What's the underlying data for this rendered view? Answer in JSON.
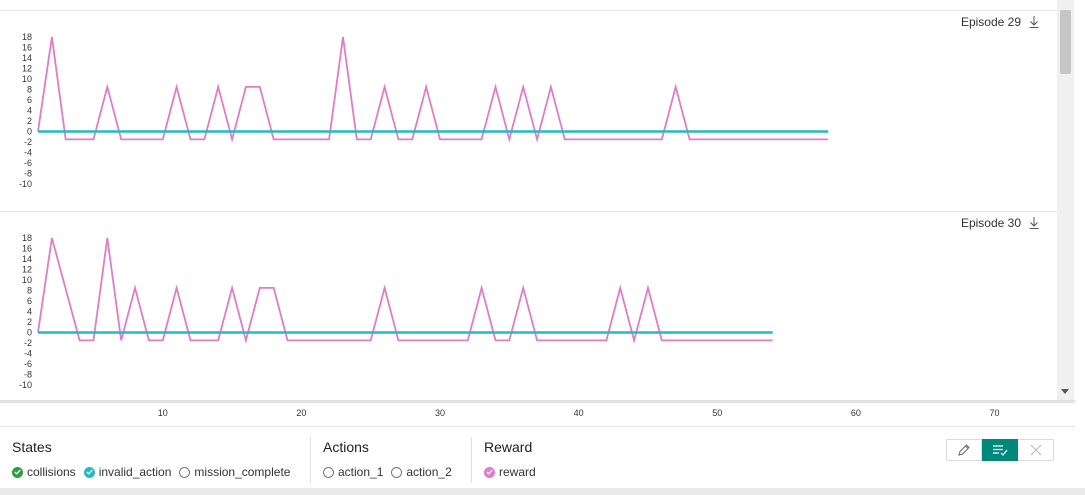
{
  "colors": {
    "reward": "#e07cc8",
    "invalid_action": "#26b8c4",
    "collisions": "#2e9e3e",
    "accent": "#00897b"
  },
  "episodes": [
    {
      "title": "Episode 29"
    },
    {
      "title": "Episode 30"
    }
  ],
  "chart_data": [
    {
      "type": "line",
      "title": "Episode 29",
      "xlim": [
        1,
        74
      ],
      "ylim": [
        -10,
        18
      ],
      "yticks": [
        18,
        16,
        14,
        12,
        10,
        8,
        6,
        4,
        2,
        0,
        -2,
        -4,
        -6,
        -8,
        -10
      ],
      "series": [
        {
          "name": "reward",
          "x": [
            1,
            2,
            3,
            5,
            6,
            7,
            10,
            11,
            12,
            13,
            14,
            15,
            16,
            17,
            18,
            22,
            23,
            24,
            25,
            26,
            27,
            28,
            29,
            30,
            33,
            34,
            35,
            36,
            37,
            38,
            39,
            46,
            47,
            48,
            58
          ],
          "y": [
            0,
            18,
            -1.5,
            -1.5,
            8.5,
            -1.5,
            -1.5,
            8.5,
            -1.5,
            -1.5,
            8.5,
            -1.5,
            8.5,
            8.5,
            -1.5,
            -1.5,
            18,
            -1.5,
            -1.5,
            8.5,
            -1.5,
            -1.5,
            8.5,
            -1.5,
            -1.5,
            8.5,
            -1.5,
            8.5,
            -1.5,
            8.5,
            -1.5,
            -1.5,
            8.5,
            -1.5,
            -1.5
          ]
        },
        {
          "name": "invalid_action",
          "x": [
            1,
            58
          ],
          "y": [
            0,
            0
          ]
        }
      ]
    },
    {
      "type": "line",
      "title": "Episode 30",
      "xlim": [
        1,
        74
      ],
      "ylim": [
        -10,
        18
      ],
      "yticks": [
        18,
        16,
        14,
        12,
        10,
        8,
        6,
        4,
        2,
        0,
        -2,
        -4,
        -6,
        -8,
        -10
      ],
      "series": [
        {
          "name": "reward",
          "x": [
            1,
            2,
            4,
            5,
            6,
            7,
            8,
            9,
            10,
            11,
            12,
            14,
            15,
            16,
            17,
            18,
            19,
            21,
            25,
            26,
            27,
            32,
            33,
            34,
            35,
            36,
            37,
            42,
            43,
            44,
            45,
            46,
            47,
            54
          ],
          "y": [
            0,
            18,
            -1.5,
            -1.5,
            18,
            -1.5,
            8.5,
            -1.5,
            -1.5,
            8.5,
            -1.5,
            -1.5,
            8.5,
            -1.5,
            8.5,
            8.5,
            -1.5,
            -1.5,
            -1.5,
            8.5,
            -1.5,
            -1.5,
            8.5,
            -1.5,
            -1.5,
            8.5,
            -1.5,
            -1.5,
            8.5,
            -1.5,
            8.5,
            -1.5,
            -1.5,
            -1.5
          ]
        },
        {
          "name": "invalid_action",
          "x": [
            1,
            54
          ],
          "y": [
            0,
            0
          ]
        }
      ]
    }
  ],
  "x_axis": {
    "ticks": [
      10,
      20,
      30,
      40,
      50,
      60,
      70
    ]
  },
  "legend": {
    "states": {
      "title": "States",
      "items": [
        {
          "label": "collisions",
          "active": true,
          "color": "#2e9e3e"
        },
        {
          "label": "invalid_action",
          "active": true,
          "color": "#26b8c4"
        },
        {
          "label": "mission_complete",
          "active": false,
          "color": ""
        }
      ]
    },
    "actions": {
      "title": "Actions",
      "items": [
        {
          "label": "action_1",
          "active": false,
          "color": ""
        },
        {
          "label": "action_2",
          "active": false,
          "color": ""
        }
      ]
    },
    "reward": {
      "title": "Reward",
      "items": [
        {
          "label": "reward",
          "active": true,
          "color": "#e07cc8"
        }
      ]
    }
  },
  "toolbar": {
    "edit_icon": "pencil-icon",
    "list_icon": "list-check-icon",
    "close_icon": "close-icon"
  }
}
